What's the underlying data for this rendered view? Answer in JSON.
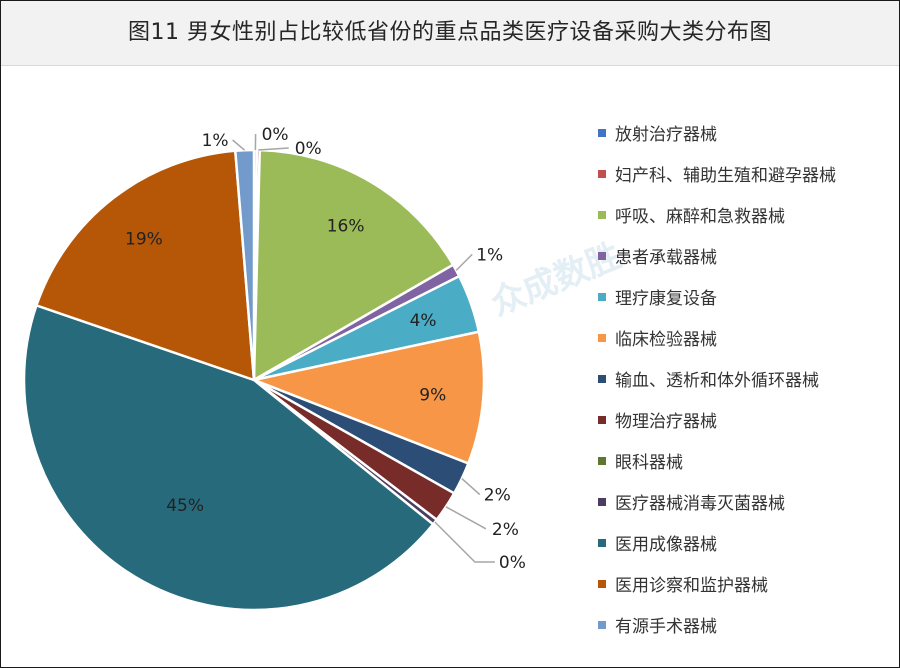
{
  "title": "图11 男女性别占比较低省份的重点品类医疗设备采购大类分布图",
  "chart_data": {
    "type": "pie",
    "title": "图11 男女性别占比较低省份的重点品类医疗设备采购大类分布图",
    "legend_position": "right",
    "categories": [
      "放射治疗器械",
      "妇产科、辅助生殖和避孕器械",
      "呼吸、麻醉和急救器械",
      "患者承载器械",
      "理疗康复设备",
      "临床检验器械",
      "输血、透析和体外循环器械",
      "物理治疗器械",
      "眼科器械",
      "医疗器械消毒灭菌器械",
      "医用成像器械",
      "医用诊察和监护器械",
      "有源手术器械"
    ],
    "values": [
      0.2,
      0.2,
      16.3,
      0.9,
      4.1,
      9.3,
      2.3,
      2.2,
      0.0,
      0.4,
      44.6,
      18.5,
      1.3
    ],
    "labels": [
      "0%",
      "0%",
      "16%",
      "1%",
      "4%",
      "9%",
      "2%",
      "2%",
      "",
      "0%",
      "45%",
      "19%",
      "1%"
    ],
    "colors": [
      "#4472c4",
      "#c0504d",
      "#9bbb59",
      "#8064a2",
      "#4bacc6",
      "#f79646",
      "#2c4d75",
      "#772c2a",
      "#5f7530",
      "#4d3b62",
      "#276a7c",
      "#b65708",
      "#729aca"
    ],
    "watermark": "众成数胜"
  }
}
